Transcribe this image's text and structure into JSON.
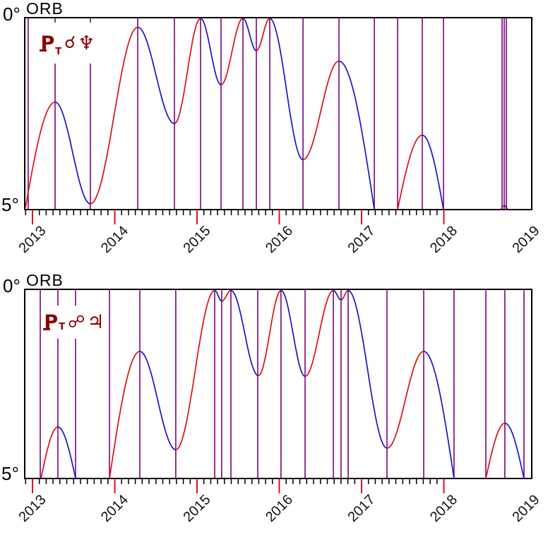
{
  "colors": {
    "background": "#ffffff",
    "applying_curve": "#dd1111",
    "separating_curve": "#1a13cc",
    "event_line": "#7d007d",
    "aspect_label": "#8b0000",
    "axis": "#000000",
    "year_tick": "#e01212",
    "year_label": "#111111"
  },
  "y_axis": {
    "title": "ORB",
    "top_label": "0°",
    "bottom_label": "5°",
    "min": 0,
    "max": 5,
    "inverted": true,
    "unit": "degrees of orb"
  },
  "x_axis": {
    "years": [
      2013,
      2014,
      2015,
      2016,
      2017,
      2018,
      2019
    ],
    "minor_tick": "month"
  },
  "chart_data": [
    {
      "type": "line",
      "name": "transiting-pluto-conjunct-neptune-orb",
      "aspect_label": {
        "planet_glyph": "P",
        "planet_subscript": "T",
        "aspect_glyph": "☌",
        "aspect_name": "conjunction",
        "target_glyph": "♆",
        "target_name": "Neptune"
      },
      "legend": {
        "applying_color_meaning": "orb closing (red)",
        "separating_color_meaning": "orb widening (blue)"
      },
      "event_line_dates": [
        2012.948,
        2013.275,
        2013.704,
        2014.279,
        2014.725,
        2015.043,
        2015.292,
        2015.558,
        2015.721,
        2015.884,
        2016.288,
        2016.725,
        2017.155,
        2017.438,
        2017.738,
        2017.996,
        2018.708,
        2018.734,
        2018.76
      ],
      "orb_curve_segments": [
        {
          "points": [
            [
              2012.91,
              5.0
            ],
            [
              2013.275,
              2.2
            ],
            [
              2013.704,
              4.85
            ],
            [
              2014.279,
              0.25
            ],
            [
              2014.725,
              2.76
            ],
            [
              2015.043,
              0.02
            ],
            [
              2015.292,
              1.75
            ],
            [
              2015.558,
              0.02
            ],
            [
              2015.721,
              0.86
            ],
            [
              2015.884,
              0.02
            ],
            [
              2016.288,
              3.7
            ],
            [
              2016.725,
              1.13
            ],
            [
              2017.155,
              5.0
            ]
          ]
        },
        {
          "points": [
            [
              2017.438,
              5.0
            ],
            [
              2017.738,
              3.06
            ],
            [
              2017.996,
              5.0
            ]
          ]
        },
        {
          "points": [
            [
              2018.691,
              5.0
            ],
            [
              2018.734,
              4.9
            ],
            [
              2018.777,
              5.0
            ]
          ]
        }
      ]
    },
    {
      "type": "line",
      "name": "transiting-pluto-opposition-jupiter-orb",
      "aspect_label": {
        "planet_glyph": "P",
        "planet_subscript": "T",
        "aspect_glyph": "☍",
        "aspect_name": "opposition",
        "target_glyph": "♃",
        "target_name": "Jupiter"
      },
      "legend": {
        "applying_color_meaning": "orb closing (red)",
        "separating_color_meaning": "orb widening (blue)"
      },
      "event_line_dates": [
        2013.094,
        2013.309,
        2013.524,
        2013.936,
        2014.305,
        2014.742,
        2015.215,
        2015.3,
        2015.412,
        2015.738,
        2016.021,
        2016.313,
        2016.657,
        2016.751,
        2016.837,
        2017.309,
        2017.755,
        2018.124,
        2018.511,
        2018.742,
        2018.974
      ],
      "orb_curve_segments": [
        {
          "points": [
            [
              2013.103,
              5.0
            ],
            [
              2013.309,
              3.64
            ],
            [
              2013.524,
              5.0
            ]
          ]
        },
        {
          "points": [
            [
              2013.936,
              5.0
            ],
            [
              2014.305,
              1.64
            ],
            [
              2014.742,
              4.24
            ],
            [
              2015.215,
              0.03
            ],
            [
              2015.3,
              0.31
            ],
            [
              2015.412,
              0.03
            ],
            [
              2015.746,
              2.28
            ],
            [
              2016.021,
              0.03
            ],
            [
              2016.313,
              2.3
            ],
            [
              2016.657,
              0.03
            ],
            [
              2016.751,
              0.28
            ],
            [
              2016.837,
              0.03
            ],
            [
              2017.309,
              4.2
            ],
            [
              2017.755,
              1.64
            ],
            [
              2018.124,
              5.0
            ]
          ]
        },
        {
          "points": [
            [
              2018.511,
              5.0
            ],
            [
              2018.742,
              3.54
            ],
            [
              2018.974,
              5.0
            ]
          ]
        }
      ]
    }
  ]
}
